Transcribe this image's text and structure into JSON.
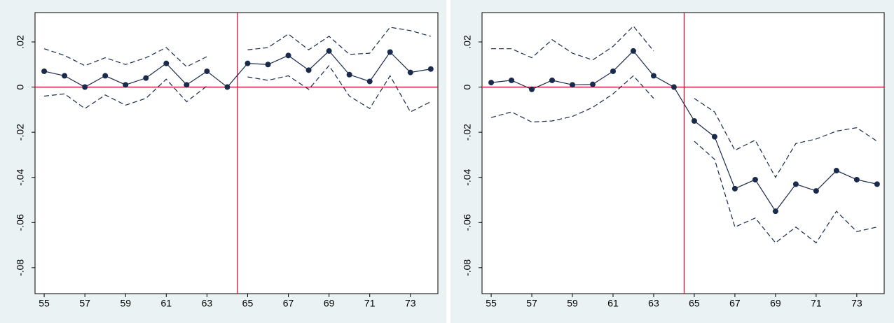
{
  "chart_data": [
    {
      "type": "line",
      "x": [
        55,
        56,
        57,
        58,
        59,
        60,
        61,
        62,
        63,
        64,
        65,
        66,
        67,
        68,
        69,
        70,
        71,
        72,
        73,
        74
      ],
      "xlim": [
        54.55,
        74.35
      ],
      "xticks": [
        55,
        57,
        59,
        61,
        63,
        65,
        67,
        69,
        71,
        73
      ],
      "ylim": [
        -0.0915,
        0.033
      ],
      "yticks": [
        {
          "value": 0.02,
          "label": ".02"
        },
        0,
        {
          "value": -0.02,
          "label": "-.02"
        },
        {
          "value": -0.04,
          "label": "-.04"
        },
        {
          "value": -0.06,
          "label": "-.06"
        },
        {
          "value": -0.08,
          "label": "-.08"
        }
      ],
      "vline": 64.5,
      "hline": 0,
      "ref_color": "#c8102e",
      "series": [
        {
          "color": "#1a2a4a",
          "marker": true,
          "dashed": false,
          "values": [
            0.007,
            0.005,
            0,
            0.005,
            0.001,
            0.004,
            0.0105,
            0.001,
            0.007,
            0,
            0.0105,
            0.01,
            0.014,
            0.0075,
            0.016,
            0.0055,
            0.0025,
            0.0155,
            0.0065,
            0.008
          ]
        },
        {
          "color": "#1a2a4a",
          "marker": false,
          "dashed": true,
          "values": [
            0.017,
            0.014,
            0.0095,
            0.013,
            0.01,
            0.013,
            0.0175,
            0.009,
            0.0135,
            null,
            0.0165,
            0.0175,
            0.0235,
            0.0165,
            0.0225,
            0.0145,
            0.015,
            0.0265,
            0.025,
            0.0225
          ]
        },
        {
          "color": "#1a2a4a",
          "marker": false,
          "dashed": true,
          "values": [
            -0.004,
            -0.003,
            -0.0095,
            -0.0035,
            -0.008,
            -0.005,
            0.0035,
            -0.0065,
            0.0005,
            null,
            0.0045,
            0.003,
            0.005,
            -0.001,
            0.0095,
            -0.004,
            -0.0095,
            0.005,
            -0.011,
            -0.0065
          ]
        }
      ]
    },
    {
      "type": "line",
      "x": [
        55,
        56,
        57,
        58,
        59,
        60,
        61,
        62,
        63,
        64,
        65,
        66,
        67,
        68,
        69,
        70,
        71,
        72,
        73,
        74
      ],
      "xlim": [
        54.55,
        74.35
      ],
      "xticks": [
        55,
        57,
        59,
        61,
        63,
        65,
        67,
        69,
        71,
        73
      ],
      "ylim": [
        -0.0915,
        0.033
      ],
      "yticks": [
        {
          "value": 0.02,
          "label": ".02"
        },
        0,
        {
          "value": -0.02,
          "label": "-.02"
        },
        {
          "value": -0.04,
          "label": "-.04"
        },
        {
          "value": -0.06,
          "label": "-.06"
        },
        {
          "value": -0.08,
          "label": "-.08"
        }
      ],
      "vline": 64.5,
      "hline": 0,
      "ref_color": "#c8102e",
      "series": [
        {
          "color": "#1a2a4a",
          "marker": true,
          "dashed": false,
          "values": [
            0.002,
            0.003,
            -0.001,
            0.003,
            0.001,
            0.0012,
            0.007,
            0.016,
            0.005,
            0,
            -0.015,
            -0.022,
            -0.045,
            -0.041,
            -0.055,
            -0.043,
            -0.046,
            -0.037,
            -0.041,
            -0.043
          ]
        },
        {
          "color": "#1a2a4a",
          "marker": false,
          "dashed": true,
          "values": [
            0.017,
            0.017,
            0.013,
            0.021,
            0.015,
            0.012,
            0.018,
            0.027,
            0.016,
            null,
            -0.005,
            -0.011,
            -0.028,
            -0.0235,
            -0.04,
            -0.025,
            -0.023,
            -0.0195,
            -0.018,
            -0.024
          ]
        },
        {
          "color": "#1a2a4a",
          "marker": false,
          "dashed": true,
          "values": [
            -0.0135,
            -0.011,
            -0.0155,
            -0.015,
            -0.013,
            -0.009,
            -0.003,
            0.005,
            -0.005,
            null,
            -0.024,
            -0.032,
            -0.062,
            -0.058,
            -0.069,
            -0.062,
            -0.069,
            -0.055,
            -0.064,
            -0.062
          ]
        }
      ]
    }
  ]
}
